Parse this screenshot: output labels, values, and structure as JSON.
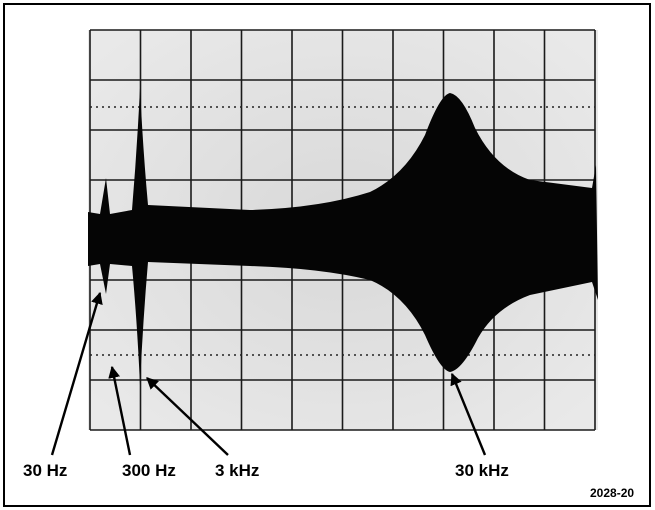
{
  "labels": [
    "30 Hz",
    "300 Hz",
    "3 kHz",
    "30 kHz"
  ],
  "figure_id": "2028-20"
}
